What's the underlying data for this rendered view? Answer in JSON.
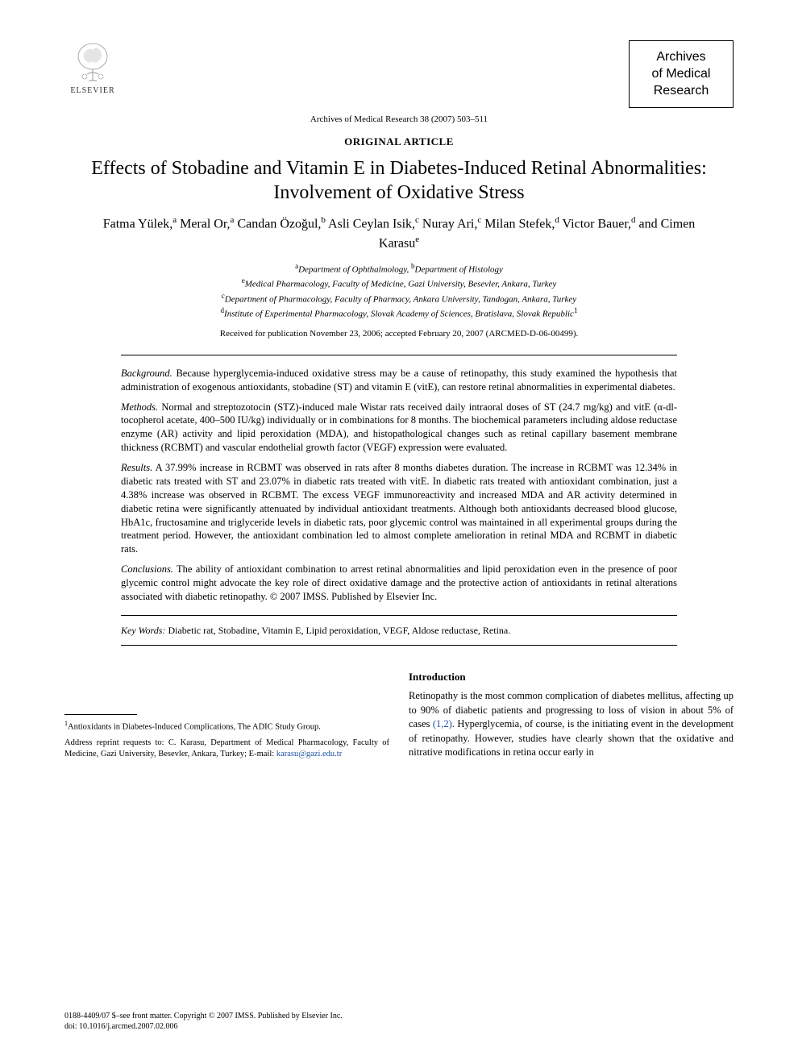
{
  "publisher": {
    "name": "ELSEVIER",
    "logo_color": "#e37b2f"
  },
  "journal_box": {
    "line1": "Archives",
    "line2": "of Medical",
    "line3": "Research"
  },
  "citation": "Archives of Medical Research 38 (2007) 503–511",
  "article_type": "ORIGINAL ARTICLE",
  "title": "Effects of Stobadine and Vitamin E in Diabetes-Induced Retinal Abnormalities: Involvement of Oxidative Stress",
  "authors_html": "Fatma Yülek,<sup>a</sup> Meral Or,<sup>a</sup> Candan Özoğul,<sup>b</sup> Asli Ceylan Isik,<sup>c</sup> Nuray Ari,<sup>c</sup> Milan Stefek,<sup>d</sup> Victor Bauer,<sup>d</sup> and Cimen Karasu<sup>e</sup>",
  "affiliations": [
    "<sup>a</sup>Department of Ophthalmology, <sup>b</sup>Department of Histology",
    "<sup>e</sup>Medical Pharmacology, Faculty of Medicine, Gazi University, Besevler, Ankara, Turkey",
    "<sup>c</sup>Department of Pharmacology, Faculty of Pharmacy, Ankara University, Tandogan, Ankara, Turkey",
    "<sup>d</sup>Institute of Experimental Pharmacology, Slovak Academy of Sciences, Bratislava, Slovak Republic<sup>1</sup>"
  ],
  "received": "Received for publication November 23, 2006; accepted February 20, 2007 (ARCMED-D-06-00499).",
  "abstract": {
    "background": "Because hyperglycemia-induced oxidative stress may be a cause of retinopathy, this study examined the hypothesis that administration of exogenous antioxidants, stobadine (ST) and vitamin E (vitE), can restore retinal abnormalities in experimental diabetes.",
    "methods": "Normal and streptozotocin (STZ)-induced male Wistar rats received daily intraoral doses of ST (24.7 mg/kg) and vitE (α-dl-tocopherol acetate, 400–500 IU/kg) individually or in combinations for 8 months. The biochemical parameters including aldose reductase enzyme (AR) activity and lipid peroxidation (MDA), and histopathological changes such as retinal capillary basement membrane thickness (RCBMT) and vascular endothelial growth factor (VEGF) expression were evaluated.",
    "results": "A 37.99% increase in RCBMT was observed in rats after 8 months diabetes duration. The increase in RCBMT was 12.34% in diabetic rats treated with ST and 23.07% in diabetic rats treated with vitE. In diabetic rats treated with antioxidant combination, just a 4.38% increase was observed in RCBMT. The excess VEGF immunoreactivity and increased MDA and AR activity determined in diabetic retina were significantly attenuated by individual antioxidant treatments. Although both antioxidants decreased blood glucose, HbA1c, fructosamine and triglyceride levels in diabetic rats, poor glycemic control was maintained in all experimental groups during the treatment period. However, the antioxidant combination led to almost complete amelioration in retinal MDA and RCBMT in diabetic rats.",
    "conclusions": "The ability of antioxidant combination to arrest retinal abnormalities and lipid peroxidation even in the presence of poor glycemic control might advocate the key role of direct oxidative damage and the protective action of antioxidants in retinal alterations associated with diabetic retinopathy.   © 2007 IMSS. Published by Elsevier Inc."
  },
  "keywords": "Diabetic rat, Stobadine, Vitamin E, Lipid peroxidation, VEGF, Aldose reductase, Retina.",
  "footnotes": {
    "note1": "<sup>1</sup>Antioxidants in Diabetes-Induced Complications, The ADIC Study Group.",
    "reprint": "Address reprint requests to: C. Karasu, Department of Medical Pharmacology, Faculty of Medicine, Gazi University, Besevler, Ankara, Turkey; E-mail: ",
    "email": "karasu@gazi.edu.tr"
  },
  "introduction": {
    "heading": "Introduction",
    "para1_a": "Retinopathy is the most common complication of diabetes mellitus, affecting up to 90% of diabetic patients and progressing to loss of vision in about 5% of cases ",
    "ref1": "(1,2)",
    "para1_b": ". Hyperglycemia, of course, is the initiating event in the development of retinopathy. However, studies have clearly shown that the oxidative and nitrative modifications in retina occur early in"
  },
  "footer": {
    "line1": "0188-4409/07 $–see front matter. Copyright © 2007 IMSS. Published by Elsevier Inc.",
    "line2": "doi: 10.1016/j.arcmed.2007.02.006"
  },
  "colors": {
    "text": "#000000",
    "link": "#1a4fa3",
    "background": "#ffffff"
  }
}
